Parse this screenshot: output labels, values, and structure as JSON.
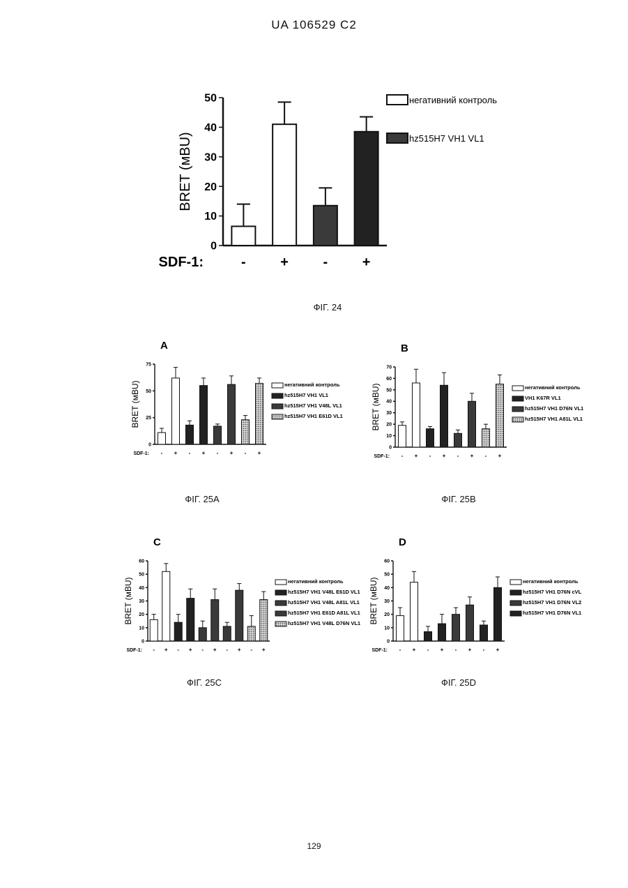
{
  "header": "UA   106529   C2",
  "page_number": "129",
  "colors": {
    "white": "#ffffff",
    "black": "#222222",
    "dark": "#3a3a3a",
    "hatch": "#888888"
  },
  "figures": [
    {
      "id": "fig24",
      "caption": "ФІГ. 24",
      "panel_letter": "",
      "chart_data": {
        "type": "bar",
        "ylabel": "BRET (мBU)",
        "ylim": [
          0,
          50
        ],
        "yticks": [
          0,
          10,
          20,
          30,
          40,
          50
        ],
        "ytick_labels": [
          "0",
          "10",
          "20",
          "30",
          "40",
          "50"
        ],
        "x_prefix": "SDF-1:",
        "categories": [
          "-",
          "+",
          "-",
          "+"
        ],
        "values": [
          6.5,
          41,
          13.5,
          38.5
        ],
        "errors": [
          7.5,
          7.5,
          6,
          5
        ],
        "fills": [
          "white",
          "white",
          "dark",
          "black"
        ],
        "legend": [
          {
            "label": "негативний контроль",
            "fill": "white"
          },
          {
            "label": "hz515H7 VH1 VL1",
            "fill": "dark"
          }
        ]
      }
    },
    {
      "id": "fig25a",
      "caption": "ФІГ. 25А",
      "panel_letter": "A",
      "chart_data": {
        "type": "bar",
        "ylabel": "BRET (мBU)",
        "ylim": [
          0,
          75
        ],
        "yticks": [
          0,
          25,
          50,
          75
        ],
        "ytick_labels": [
          "0",
          "25",
          "50",
          "75"
        ],
        "x_prefix": "SDF-1:",
        "categories": [
          "-",
          "+",
          "-",
          "+",
          "-",
          "+",
          "-",
          "+"
        ],
        "values": [
          11,
          62,
          18,
          55,
          17,
          56,
          23,
          57
        ],
        "errors": [
          4,
          10,
          4,
          7,
          2,
          8,
          4,
          5
        ],
        "fills": [
          "white",
          "white",
          "black",
          "black",
          "dark",
          "dark",
          "hatch",
          "hatch"
        ],
        "legend": [
          {
            "label": "негативний контроль",
            "fill": "white"
          },
          {
            "label": "hz515H7 VH1 VL1",
            "fill": "black"
          },
          {
            "label": "hz515H7 VH1 V48L VL1",
            "fill": "dark"
          },
          {
            "label": "hz515H7 VH1 E61D VL1",
            "fill": "hatch"
          }
        ]
      }
    },
    {
      "id": "fig25b",
      "caption": "ФІГ. 25В",
      "panel_letter": "B",
      "chart_data": {
        "type": "bar",
        "ylabel": "BRET (мBU)",
        "ylim": [
          0,
          70
        ],
        "yticks": [
          0,
          10,
          20,
          30,
          40,
          50,
          60,
          70
        ],
        "ytick_labels": [
          "0",
          "10",
          "20",
          "30",
          "40",
          "50",
          "60",
          "70"
        ],
        "x_prefix": "SDF-1:",
        "categories": [
          "-",
          "+",
          "-",
          "+",
          "-",
          "+",
          "-",
          "+"
        ],
        "values": [
          19,
          56,
          16,
          54,
          12,
          40,
          16,
          55
        ],
        "errors": [
          3,
          12,
          2,
          11,
          3,
          7,
          4,
          8
        ],
        "fills": [
          "white",
          "white",
          "black",
          "black",
          "dark",
          "dark",
          "hatch",
          "hatch"
        ],
        "legend": [
          {
            "label": "негативний контроль",
            "fill": "white"
          },
          {
            "label": "VH1 K67R VL1",
            "fill": "black"
          },
          {
            "label": "hz515H7 VH1 D76N VL1",
            "fill": "dark"
          },
          {
            "label": "hz515H7 VH1 A81L VL1",
            "fill": "hatch"
          }
        ]
      }
    },
    {
      "id": "fig25c",
      "caption": "ФІГ. 25С",
      "panel_letter": "C",
      "chart_data": {
        "type": "bar",
        "ylabel": "BRET (мBU)",
        "ylim": [
          0,
          60
        ],
        "yticks": [
          0,
          10,
          20,
          30,
          40,
          50,
          60
        ],
        "ytick_labels": [
          "0",
          "10",
          "20",
          "30",
          "40",
          "50",
          "60"
        ],
        "x_prefix": "SDF-1:",
        "categories": [
          "-",
          "+",
          "-",
          "+",
          "-",
          "+",
          "-",
          "+",
          "-",
          "+"
        ],
        "values": [
          16,
          52,
          14,
          32,
          10,
          31,
          11,
          38,
          11,
          31
        ],
        "errors": [
          4,
          6,
          6,
          7,
          5,
          8,
          3,
          5,
          8,
          6
        ],
        "fills": [
          "white",
          "white",
          "black",
          "black",
          "dark",
          "dark",
          "dark",
          "dark",
          "hatch",
          "hatch"
        ],
        "legend": [
          {
            "label": "негативний контроль",
            "fill": "white"
          },
          {
            "label": "hz515H7 VH1 V48L E61D VL1",
            "fill": "black"
          },
          {
            "label": "hz515H7 VH1 V48L A81L VL1",
            "fill": "dark"
          },
          {
            "label": "hz515H7 VH1 E61D A81L VL1",
            "fill": "dark"
          },
          {
            "label": "hz515H7 VH1 V48L D76N VL1",
            "fill": "hatch"
          }
        ]
      }
    },
    {
      "id": "fig25d",
      "caption": "ФІГ. 25D",
      "panel_letter": "D",
      "chart_data": {
        "type": "bar",
        "ylabel": "BRET (мBU)",
        "ylim": [
          0,
          60
        ],
        "yticks": [
          0,
          10,
          20,
          30,
          40,
          50,
          60
        ],
        "ytick_labels": [
          "0",
          "10",
          "20",
          "30",
          "40",
          "50",
          "60"
        ],
        "x_prefix": "SDF-1:",
        "categories": [
          "-",
          "+",
          "-",
          "+",
          "-",
          "+",
          "-",
          "+"
        ],
        "values": [
          19,
          44,
          7,
          13,
          20,
          27,
          12,
          40
        ],
        "errors": [
          6,
          8,
          4,
          7,
          5,
          6,
          3,
          8
        ],
        "fills": [
          "white",
          "white",
          "black",
          "black",
          "dark",
          "dark",
          "black",
          "black"
        ],
        "legend": [
          {
            "label": "негативний контроль",
            "fill": "white"
          },
          {
            "label": "hz515H7 VH1 D76N cVL",
            "fill": "black"
          },
          {
            "label": "hz515H7 VH1 D76N VL2",
            "fill": "dark"
          },
          {
            "label": "hz515H7 VH1 D76N VL1",
            "fill": "black"
          }
        ]
      }
    }
  ]
}
